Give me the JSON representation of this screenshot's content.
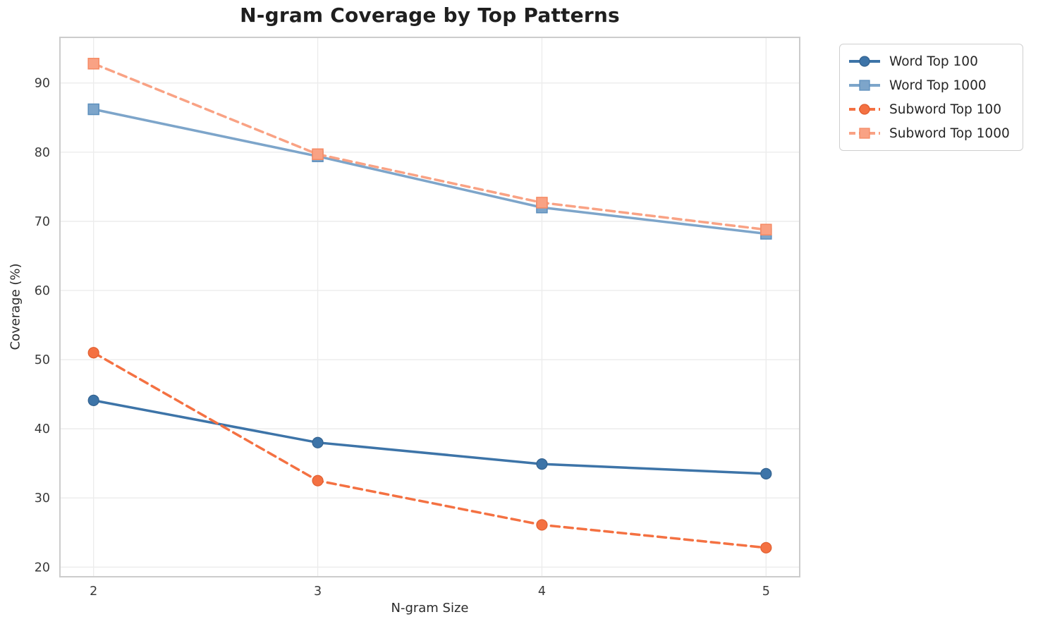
{
  "chart_data": {
    "type": "line",
    "title": "N-gram Coverage by Top Patterns",
    "xlabel": "N-gram Size",
    "ylabel": "Coverage (%)",
    "x": [
      2,
      3,
      4,
      5
    ],
    "xticks": [
      "2",
      "3",
      "4",
      "5"
    ],
    "yticks": [
      20,
      30,
      40,
      50,
      60,
      70,
      80,
      90
    ],
    "xlim": [
      1.85,
      5.15
    ],
    "ylim": [
      18.6,
      96.6
    ],
    "grid": true,
    "legend_position": "outside-upper-right",
    "series": [
      {
        "name": "Word Top 100",
        "values": [
          44.1,
          38.0,
          34.9,
          33.5
        ],
        "color": "#3d74a8",
        "edge_color": "#33628f",
        "line_style": "solid",
        "marker": "circle"
      },
      {
        "name": "Word Top 1000",
        "values": [
          86.2,
          79.4,
          72.0,
          68.2
        ],
        "color": "#7da5ca",
        "edge_color": "#5d8fbd",
        "line_style": "solid",
        "marker": "square"
      },
      {
        "name": "Subword Top 100",
        "values": [
          51.0,
          32.5,
          26.1,
          22.8
        ],
        "color": "#f47142",
        "edge_color": "#e05f30",
        "line_style": "dashed",
        "marker": "circle"
      },
      {
        "name": "Subword Top 1000",
        "values": [
          92.8,
          79.7,
          72.7,
          68.8
        ],
        "color": "#f9a284",
        "edge_color": "#f58a64",
        "line_style": "dashed",
        "marker": "square"
      }
    ],
    "grid_color": "#ececec",
    "frame_color": "#cccccc",
    "tick_label_color": "#3a3a3a"
  }
}
